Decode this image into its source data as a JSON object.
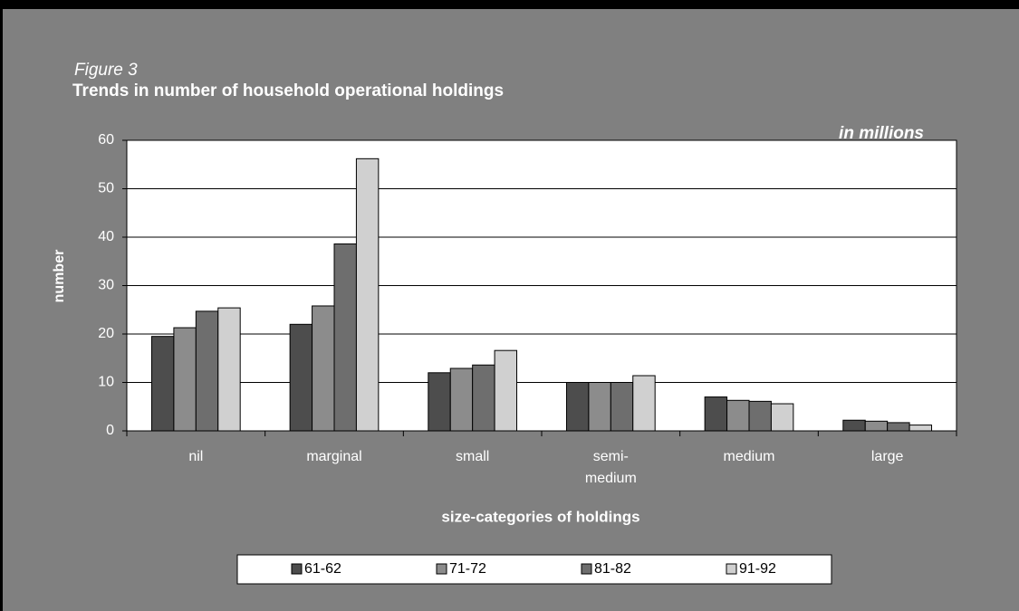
{
  "chart_data": {
    "type": "bar",
    "figure_label": "Figure 3",
    "title": "Trends in number of household operational holdings",
    "subtitle": "in millions",
    "y_label": "number",
    "x_label": "size-categories of holdings",
    "categories": [
      "nil",
      "marginal",
      "small",
      "semi-medium",
      "medium",
      "large"
    ],
    "series": [
      {
        "name": "61-62",
        "color": "#4d4d4d",
        "values": [
          19.5,
          22,
          12,
          10,
          7,
          2.2
        ]
      },
      {
        "name": "71-72",
        "color": "#8c8c8c",
        "values": [
          21.3,
          25.8,
          12.9,
          10,
          6.3,
          2.0
        ]
      },
      {
        "name": "81-82",
        "color": "#6e6e6e",
        "values": [
          24.7,
          38.6,
          13.6,
          10,
          6.1,
          1.7
        ]
      },
      {
        "name": "91-92",
        "color": "#d0d0d0",
        "values": [
          25.4,
          56.2,
          16.6,
          11.4,
          5.6,
          1.2
        ]
      }
    ],
    "ylim": [
      0,
      60
    ],
    "yticks": [
      0,
      10,
      20,
      30,
      40,
      50,
      60
    ],
    "grid": true,
    "legend": "bottom"
  }
}
